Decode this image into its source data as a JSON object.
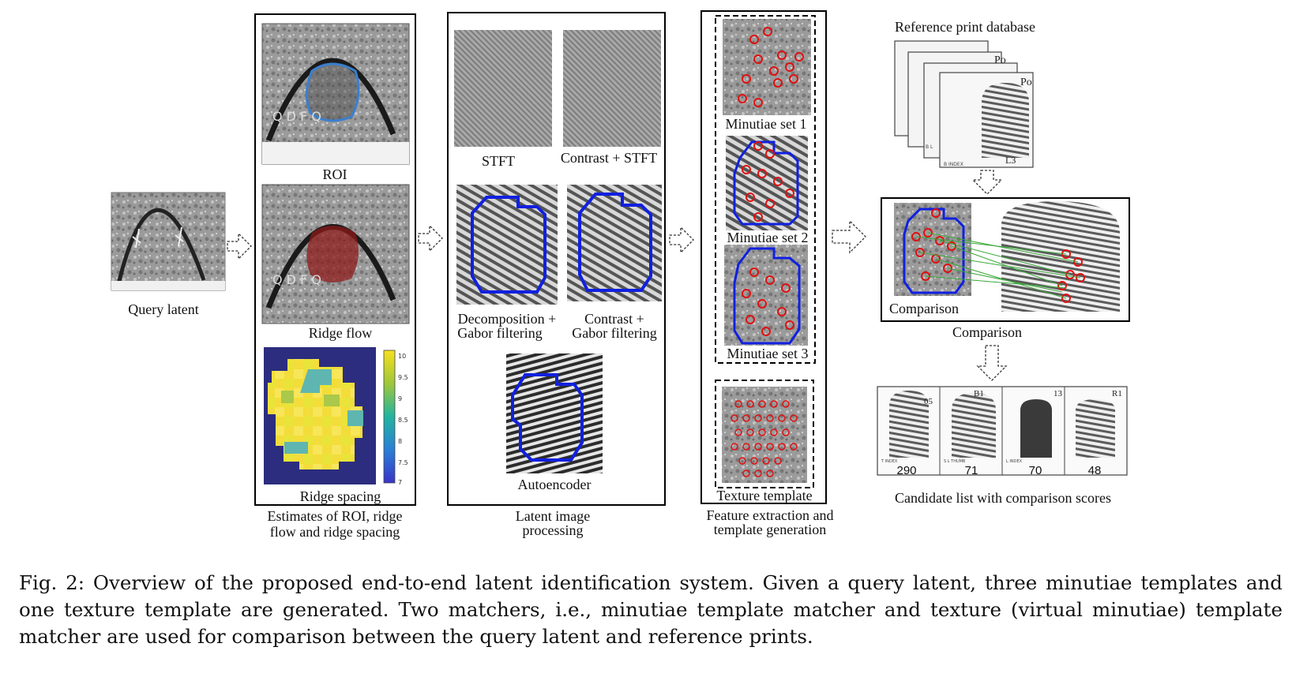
{
  "labels": {
    "query_latent": "Query latent",
    "roi": "ROI",
    "ridge_flow": "Ridge flow",
    "ridge_spacing": "Ridge spacing",
    "stage1_caption_1": "Estimates of ROI, ridge",
    "stage1_caption_2": "flow and ridge spacing",
    "stft": "STFT",
    "contrast_stft": "Contrast + STFT",
    "decomp_1": "Decomposition +",
    "decomp_2": "Gabor filtering",
    "contrast_1": "Contrast +",
    "contrast_2": "Gabor filtering",
    "autoencoder": "Autoencoder",
    "stage2_caption_1": "Latent image",
    "stage2_caption_2": "processing",
    "minutiae_1": "Minutiae set 1",
    "minutiae_2": "Minutiae set 2",
    "minutiae_3": "Minutiae set 3",
    "texture": "Texture template",
    "stage3_caption_1": "Feature extraction and",
    "stage3_caption_2": "template generation",
    "reference_db": "Reference print database",
    "comparison_inner": "Comparison",
    "comparison": "Comparison",
    "candidate_list": "Candidate list with comparison scores"
  },
  "colorbar_ticks": [
    "10",
    "9.5",
    "9",
    "8.5",
    "8",
    "7.5",
    "7"
  ],
  "card_marks": [
    "Po",
    "Po",
    "L3",
    "B L",
    "B INDEX"
  ],
  "candidate_marks": [
    "05",
    "B1",
    "13",
    "R1"
  ],
  "index_marks": [
    "T INDEX",
    "S L THUMB",
    "L INDEX"
  ],
  "scores": [
    "290",
    "71",
    "70",
    "48"
  ],
  "caption": "Fig. 2: Overview of the proposed end-to-end latent identification system. Given a query latent, three minutiae templates and one texture template are generated. Two matchers, i.e., minutiae template matcher and texture (virtual minutiae) template matcher are used for comparison between the query latent and reference prints.",
  "colors": {
    "roi_outline": "#3a7fd0",
    "mask_outline": "#1020e0",
    "minutia": "#e01010",
    "ridge_flow_overlay": "#8c1a1a",
    "match_line": "#3aa83a"
  }
}
